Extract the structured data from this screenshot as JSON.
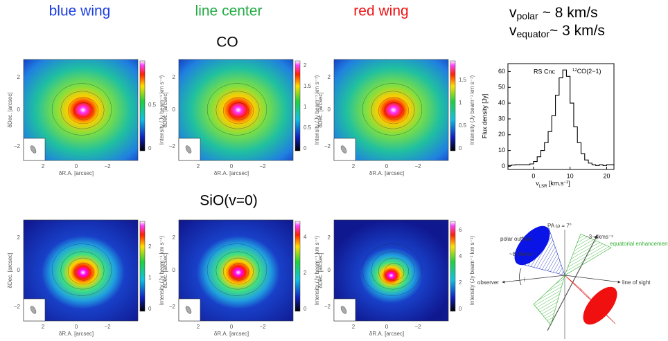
{
  "header": {
    "columns": [
      "blue wing",
      "line center",
      "red wing"
    ],
    "v_polar": {
      "symbol": "v",
      "sub": "polar",
      "text": "~ 8 km/s"
    },
    "v_equator": {
      "symbol": "v",
      "sub": "equator",
      "text": "~ 3 km/s"
    }
  },
  "map_axes": {
    "xlabel": "δR.A. [arcsec]",
    "ylabel": "δDec. [arcsec]",
    "cbar_label": "Intensity (Jy beam⁻¹ km s⁻¹)",
    "xticks": [
      "2",
      "0",
      "−2"
    ],
    "yticks": [
      "2",
      "0",
      "−2"
    ]
  },
  "rows": [
    {
      "label": "CO",
      "maps": [
        {
          "cbar_ticks": [
            "0",
            "0.5"
          ]
        },
        {
          "cbar_ticks": [
            "0",
            "0.5",
            "1",
            "1.5",
            "2"
          ]
        },
        {
          "cbar_ticks": [
            "0",
            "0.5",
            "1",
            "1.5"
          ]
        }
      ]
    },
    {
      "label": "SiO(v=0)",
      "maps": [
        {
          "cbar_ticks": [
            "0",
            "1",
            "2"
          ]
        },
        {
          "cbar_ticks": [
            "0",
            "2",
            "4"
          ]
        },
        {
          "cbar_ticks": [
            "0",
            "2",
            "4",
            "6"
          ]
        }
      ]
    }
  ],
  "spectrum": {
    "type": "line",
    "annotations": [
      "RS Cnc",
      {
        "sup": "12",
        "text": "CO(2−1)"
      }
    ],
    "ylabel": "Flux density [Jy]",
    "xlabel": {
      "main": "v",
      "sub": "LSR",
      "rest": " [km.s",
      "sup": "−1",
      "end": "]"
    },
    "x": [
      -7,
      -6,
      -5,
      -4,
      -3,
      -2,
      -1,
      0,
      1,
      2,
      3,
      4,
      5,
      6,
      7,
      8,
      9,
      10,
      11,
      12,
      13,
      14,
      15,
      16,
      17,
      18,
      19,
      20,
      21,
      22
    ],
    "values": [
      0.5,
      0.8,
      1,
      1,
      1,
      1,
      1.5,
      3,
      6,
      10,
      15,
      22,
      32,
      45,
      56,
      61,
      57,
      40,
      25,
      15,
      8,
      4,
      2,
      1,
      0.5,
      1,
      0.5,
      1,
      1,
      0.5
    ],
    "xlim": [
      -7,
      22
    ],
    "ylim": [
      -2,
      65
    ],
    "xticks": [
      0,
      10,
      20
    ],
    "yticks": [
      0,
      10,
      20,
      30,
      40,
      50,
      60
    ]
  },
  "diagram": {
    "pa": "PA  ω = 7°",
    "polar": "polar outflow",
    "v_polar": "~8−9kms⁻¹",
    "v_equator": "~3−4kms⁻¹",
    "equatorial": "equatorial enhancement",
    "observer": "observer",
    "sightline": "line of sight",
    "angle": "i"
  }
}
